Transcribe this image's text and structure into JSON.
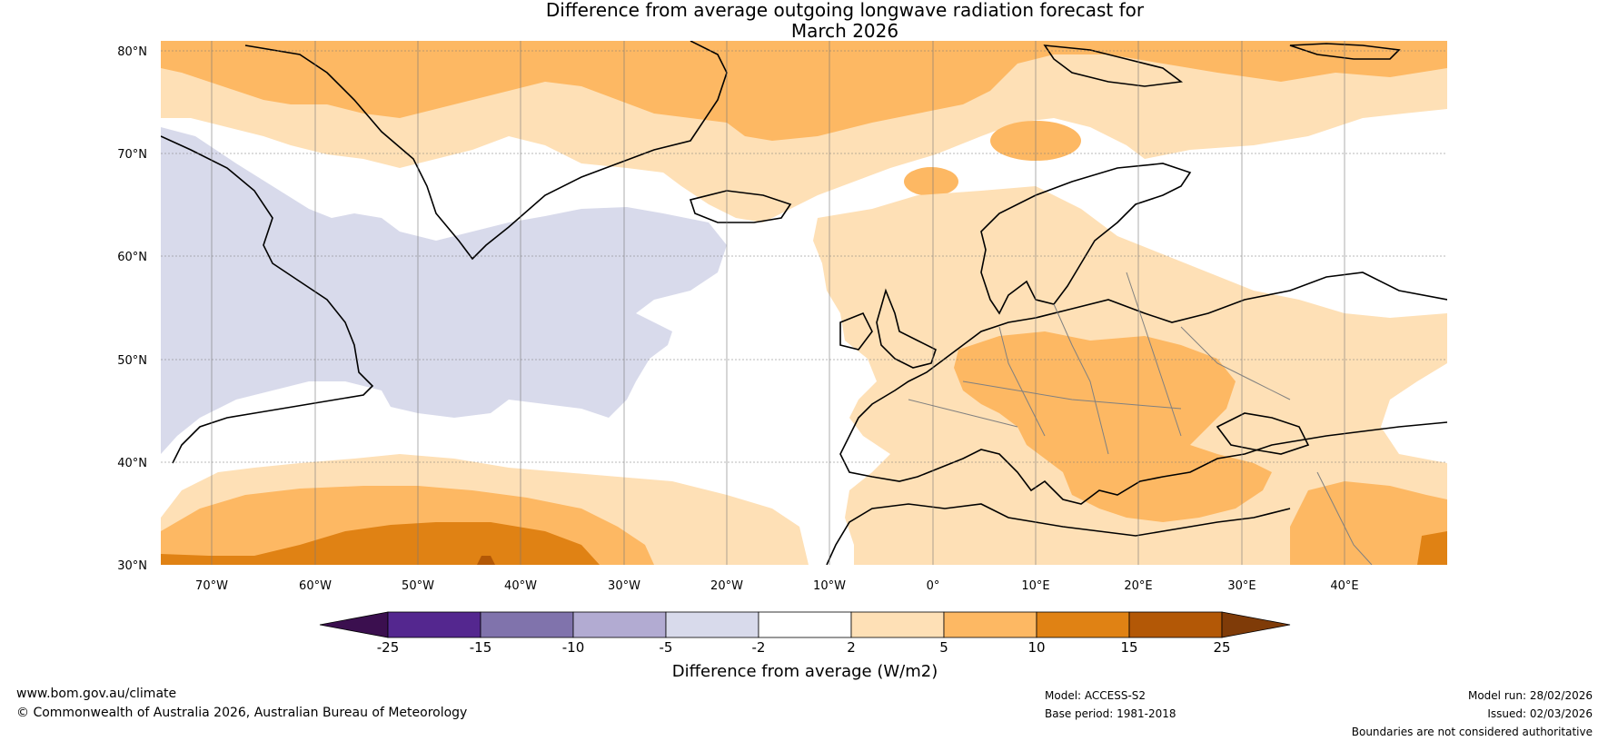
{
  "title": {
    "line1": "Difference from average outgoing longwave radiation forecast for",
    "line2": "March 2026"
  },
  "map": {
    "region": "North Atlantic and Europe",
    "lat_labels": [
      "80°N",
      "70°N",
      "60°N",
      "50°N",
      "40°N",
      "30°N"
    ],
    "lon_labels": [
      "70°W",
      "60°W",
      "50°W",
      "40°W",
      "30°W",
      "20°W",
      "10°W",
      "0°",
      "10°E",
      "20°E",
      "30°E",
      "40°E"
    ],
    "lat_range": [
      30,
      81
    ],
    "lon_range": [
      -75,
      50
    ]
  },
  "colorbar": {
    "label": "Difference from average (W/m2)",
    "ticks": [
      "-25",
      "-15",
      "-10",
      "-5",
      "-2",
      "2",
      "5",
      "10",
      "15",
      "25"
    ],
    "colors": [
      "#3b0f4f",
      "#54278f",
      "#8073ac",
      "#b2abd2",
      "#d8daeb",
      "#ffffff",
      "#fee0b6",
      "#fdb863",
      "#e08214",
      "#b35806",
      "#7f3b08"
    ]
  },
  "footer": {
    "website": "www.bom.gov.au/climate",
    "copyright": "© Commonwealth of Australia 2026, Australian Bureau of Meteorology",
    "model": "Model: ACCESS-S2",
    "base_period": "Base period: 1981-2018",
    "model_run": "Model run: 28/02/2026",
    "issued": "Issued: 02/03/2026",
    "disclaimer": "Boundaries are not considered authoritative"
  }
}
